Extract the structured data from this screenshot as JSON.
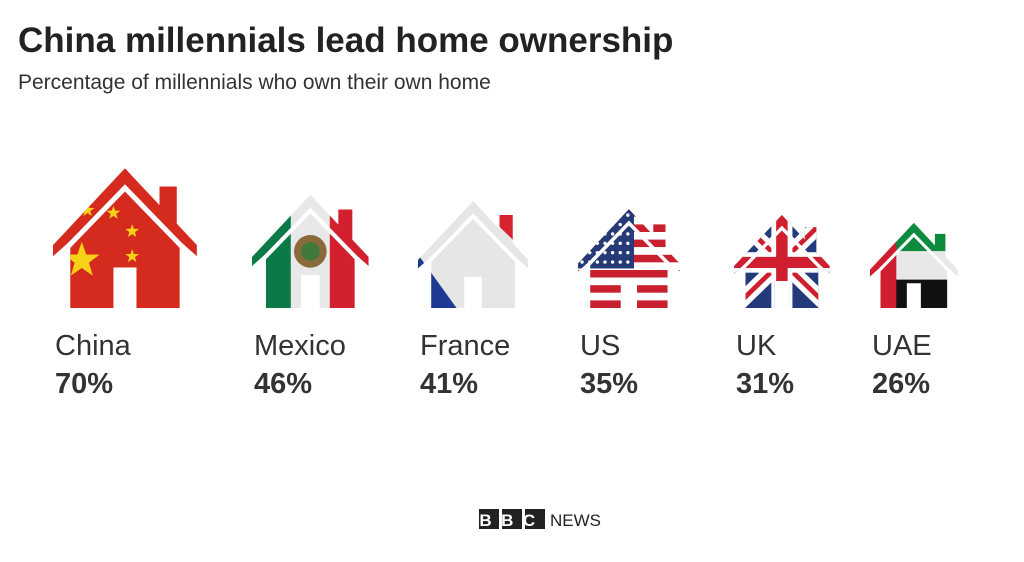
{
  "chart_data": {
    "type": "house-pictogram",
    "title": "China millennials lead home ownership",
    "subtitle": "Percentage of millennials who own their own home",
    "categories": [
      "China",
      "Mexico",
      "France",
      "US",
      "UK",
      "UAE"
    ],
    "values": [
      70,
      46,
      41,
      35,
      31,
      26
    ],
    "value_labels": [
      "70%",
      "46%",
      "41%",
      "35%",
      "31%",
      "26%"
    ]
  },
  "footer": {
    "brand": "BBC",
    "section": "NEWS"
  }
}
